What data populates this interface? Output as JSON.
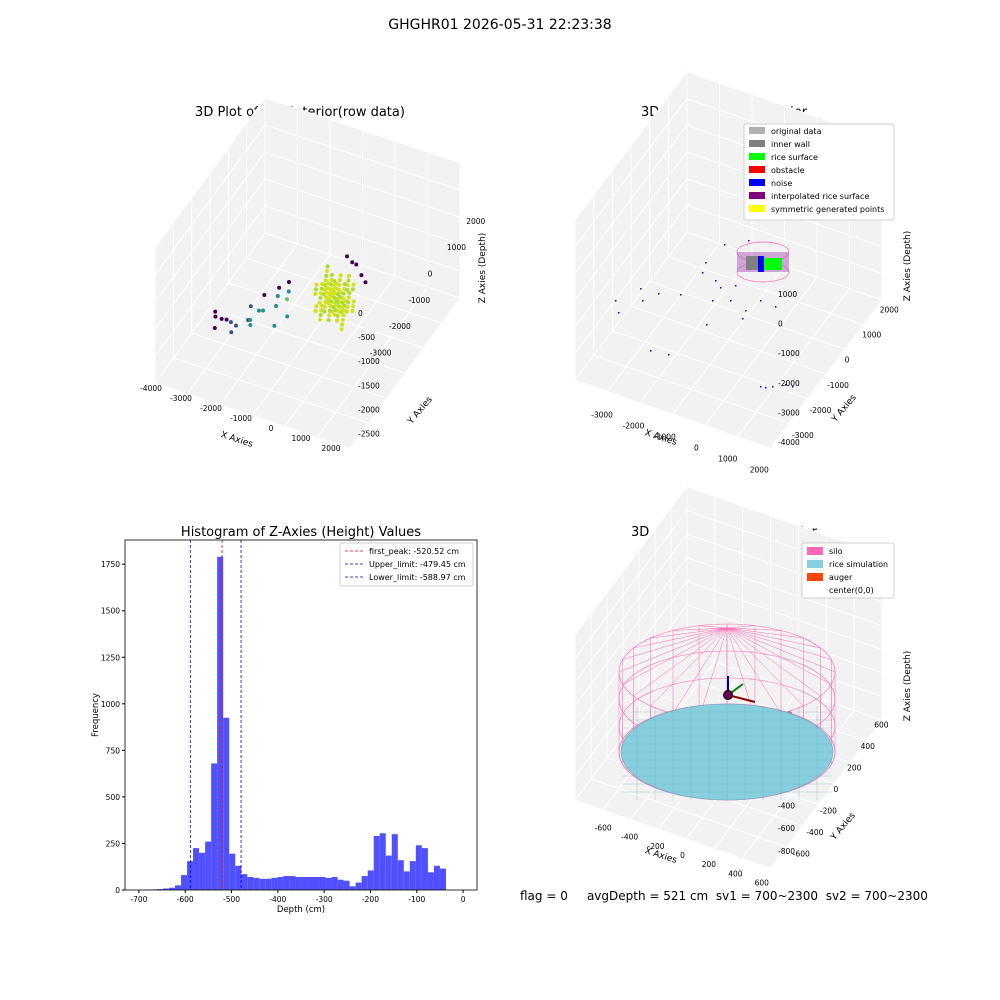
{
  "suptitle": "GHGHR01 2026-05-31 22:23:38",
  "status": {
    "flag": "flag = 0",
    "avgDepth": "avgDepth = 521 cm",
    "sv1": "sv1 = 700~2300",
    "sv2": "sv2 = 700~2300"
  },
  "colors": {
    "hist_bar": "#5050ff",
    "peak_line": "#ff0000",
    "limit_line": "#0000cc",
    "silo": "#ff69b4",
    "rice": "#87cedf",
    "auger": "#ff4500",
    "rice_surface": "#00ff00",
    "noise": "#0000ff",
    "interpolated": "#800080",
    "symmetric": "#ffff00",
    "original": "#b0b0b0",
    "inner_wall": "#808080",
    "obstacle": "#ff0000"
  },
  "chart_data": [
    {
      "type": "scatter",
      "panel": "top-left",
      "title": "3D Plot of Silo Interior(row data)",
      "xlabel": "X Axies",
      "ylabel": "Y Axies",
      "zlabel": "Z Axies (Depth)",
      "xticks": [
        "-4000",
        "-3000",
        "-2000",
        "-1000",
        "0",
        "1000",
        "2000"
      ],
      "yticks": [
        "2000",
        "1000",
        "0",
        "-1000",
        "-2000",
        "-3000"
      ],
      "zticks": [
        "0",
        "-500",
        "-1000",
        "-1500",
        "-2000",
        "-2500"
      ],
      "xlim": [
        -4000,
        2500
      ],
      "ylim": [
        -3400,
        2300
      ],
      "zlim": [
        -2800,
        0
      ],
      "cluster": {
        "x": [
          -500,
          500
        ],
        "y": [
          -200,
          700
        ],
        "z": [
          -1100,
          -300
        ]
      },
      "points": [
        [
          -3600,
          -200,
          -2600
        ],
        [
          -3400,
          100,
          -2500
        ],
        [
          -3100,
          600,
          -2400
        ],
        [
          -3000,
          400,
          -2300
        ],
        [
          -2900,
          300,
          -2350
        ],
        [
          -2500,
          700,
          -2100
        ],
        [
          -2200,
          900,
          -2000
        ],
        [
          -2100,
          1300,
          -1900
        ],
        [
          -1800,
          900,
          -1800
        ],
        [
          -1600,
          1100,
          -1650
        ],
        [
          -1500,
          800,
          -1600
        ],
        [
          -1300,
          900,
          -1500
        ],
        [
          -1000,
          600,
          -1300
        ],
        [
          -800,
          1000,
          -1250
        ],
        [
          -700,
          500,
          -1200
        ],
        [
          -500,
          900,
          -1100
        ],
        [
          -2800,
          -1500,
          -2800
        ],
        [
          -2500,
          -1800,
          -2750
        ],
        [
          -2300,
          -2000,
          -2700
        ],
        [
          -1200,
          -3300,
          -2650
        ],
        [
          -900,
          -3100,
          -2600
        ],
        [
          -700,
          -3000,
          -2550
        ],
        [
          -400,
          -2800,
          -2600
        ],
        [
          -200,
          -2700,
          -2650
        ],
        [
          -1900,
          600,
          -1700
        ],
        [
          -1400,
          1400,
          -1550
        ],
        [
          -600,
          1400,
          -1400
        ],
        [
          -300,
          1200,
          -1250
        ]
      ]
    },
    {
      "type": "scatter",
      "panel": "top-right",
      "title": "3D classify of Silo Interior",
      "xlabel": "X Axies",
      "ylabel": "Y Axies",
      "zlabel": "Z Axies (Depth)",
      "xticks": [
        "-3000",
        "-2000",
        "-1000",
        "0",
        "1000",
        "2000"
      ],
      "yticks": [
        "2000",
        "1000",
        "0",
        "-1000",
        "-2000",
        "-3000"
      ],
      "zticks": [
        "1000",
        "0",
        "-1000",
        "-2000",
        "-3000",
        "-4000"
      ],
      "xlim": [
        -3700,
        2500
      ],
      "ylim": [
        -3400,
        2300
      ],
      "zlim": [
        -4200,
        1200
      ],
      "legend": [
        {
          "label": "original data",
          "color": "#b0b0b0"
        },
        {
          "label": "inner wall",
          "color": "#808080"
        },
        {
          "label": "rice surface",
          "color": "#00ff00"
        },
        {
          "label": "obstacle",
          "color": "#ff0000"
        },
        {
          "label": "noise",
          "color": "#0000ff"
        },
        {
          "label": "interpolated rice surface",
          "color": "#800080"
        },
        {
          "label": "symmetric generated points",
          "color": "#ffff00"
        }
      ],
      "legend_loc": "upper right"
    },
    {
      "type": "bar",
      "panel": "bottom-left",
      "title": "Histogram of Z-Axies (Height) Values",
      "xlabel": "Depth (cm)",
      "ylabel": "Frequency",
      "xlim": [
        -730,
        30
      ],
      "ylim": [
        0,
        1880
      ],
      "xticks": [
        "-700",
        "-600",
        "-500",
        "-400",
        "-300",
        "-200",
        "-100",
        "0"
      ],
      "yticks": [
        "0",
        "250",
        "500",
        "750",
        "1000",
        "1250",
        "1500",
        "1750"
      ],
      "bin_start": -700,
      "bin_width": 13,
      "values": [
        1,
        2,
        3,
        5,
        8,
        12,
        25,
        80,
        155,
        225,
        200,
        260,
        680,
        1790,
        925,
        195,
        130,
        85,
        70,
        65,
        60,
        60,
        65,
        70,
        75,
        75,
        70,
        70,
        70,
        70,
        70,
        65,
        70,
        55,
        50,
        20,
        40,
        75,
        105,
        290,
        305,
        185,
        300,
        160,
        100,
        155,
        240,
        225,
        95,
        130,
        115
      ],
      "lines": [
        {
          "label": "first_peak: -520.52 cm",
          "x": -520.52,
          "color": "#ff0000"
        },
        {
          "label": "Upper_limit: -479.45 cm",
          "x": -479.45,
          "color": "#0000cc"
        },
        {
          "label": "Lower_limit: -588.97 cm",
          "x": -588.97,
          "color": "#0000cc"
        }
      ],
      "legend_loc": "upper right"
    },
    {
      "type": "surface",
      "panel": "bottom-right",
      "title": "3D simulation of Silo Interior",
      "xlabel": "X Axies",
      "ylabel": "Y Axies",
      "zlabel": "Z Axies (Depth)",
      "xticks": [
        "-600",
        "-400",
        "-200",
        "0",
        "200",
        "400",
        "600"
      ],
      "yticks": [
        "600",
        "400",
        "200",
        "0",
        "-200",
        "-400",
        "-600"
      ],
      "zticks": [
        "400",
        "200",
        "0",
        "-200",
        "-400",
        "-600",
        "-800"
      ],
      "xlim": [
        -700,
        700
      ],
      "ylim": [
        -700,
        700
      ],
      "zlim": [
        -950,
        500
      ],
      "silo_radius": 700,
      "silo_bottom": -950,
      "silo_top": 150,
      "silo_apex": 300,
      "rice_level": -521,
      "legend": [
        {
          "label": "silo",
          "color": "#ff69b4"
        },
        {
          "label": "rice simulation",
          "color": "#87cedf"
        },
        {
          "label": "auger",
          "color": "#ff4500"
        },
        {
          "label": "center(0,0)",
          "color": ""
        }
      ],
      "legend_loc": "upper right"
    }
  ]
}
